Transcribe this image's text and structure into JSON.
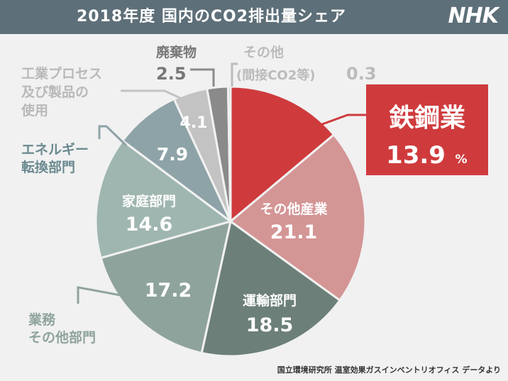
{
  "header": {
    "title": "2018年度 国内のCO2排出量シェア",
    "logo": "NHK"
  },
  "source": "国立環境研究所 温室効果ガスインベントリオフィス データより",
  "colors": {
    "header_bg": "#5d6f78",
    "steel": "#cf3b3d",
    "other_industry": "#d49595",
    "transport": "#6c7f79",
    "business": "#8fa39d",
    "household": "#9fb6b0",
    "energy": "#8ea3a7",
    "industrial_process": "#c3c3c3",
    "waste": "#8a8a8a",
    "other": "#b0b0b0"
  },
  "chart_data": {
    "type": "pie",
    "title": "2018年度 国内のCO2排出量シェア",
    "unit": "%",
    "slices": [
      {
        "label": "鉄鋼業",
        "value": 13.9,
        "display": "13.9",
        "color": "#cf3b3d"
      },
      {
        "label": "その他産業",
        "value": 21.1,
        "display": "21.1",
        "color": "#d49595"
      },
      {
        "label": "運輸部門",
        "value": 18.5,
        "display": "18.5",
        "color": "#6c7f79"
      },
      {
        "label": "業務その他部門",
        "value": 17.2,
        "display": "17.2",
        "color": "#8fa39d"
      },
      {
        "label": "家庭部門",
        "value": 14.6,
        "display": "14.6",
        "color": "#9fb6b0"
      },
      {
        "label": "エネルギー転換部門",
        "value": 7.9,
        "display": "7.9",
        "color": "#8ea3a7"
      },
      {
        "label": "工業プロセス及び製品の使用",
        "value": 4.1,
        "display": "4.1",
        "color": "#c3c3c3"
      },
      {
        "label": "廃棄物",
        "value": 2.5,
        "display": "2.5",
        "color": "#8a8a8a"
      },
      {
        "label": "その他(間接CO2等)",
        "value": 0.3,
        "display": "0.3",
        "color": "#b0b0b0"
      }
    ],
    "labels": {
      "steel_name": "鉄鋼業",
      "steel_value": "13.9",
      "steel_unit": "%",
      "other_industry_name": "その他産業",
      "transport_name": "運輸部門",
      "household_name": "家庭部門",
      "business_line1": "業務",
      "business_line2": "その他部門",
      "energy_line1": "エネルギー",
      "energy_line2": "転換部門",
      "process_line1": "工業プロセス",
      "process_line2": "及び製品の",
      "process_line3": "使用",
      "waste_name": "廃棄物",
      "other_line1": "その他",
      "other_line2": "(間接CO2等)"
    }
  }
}
